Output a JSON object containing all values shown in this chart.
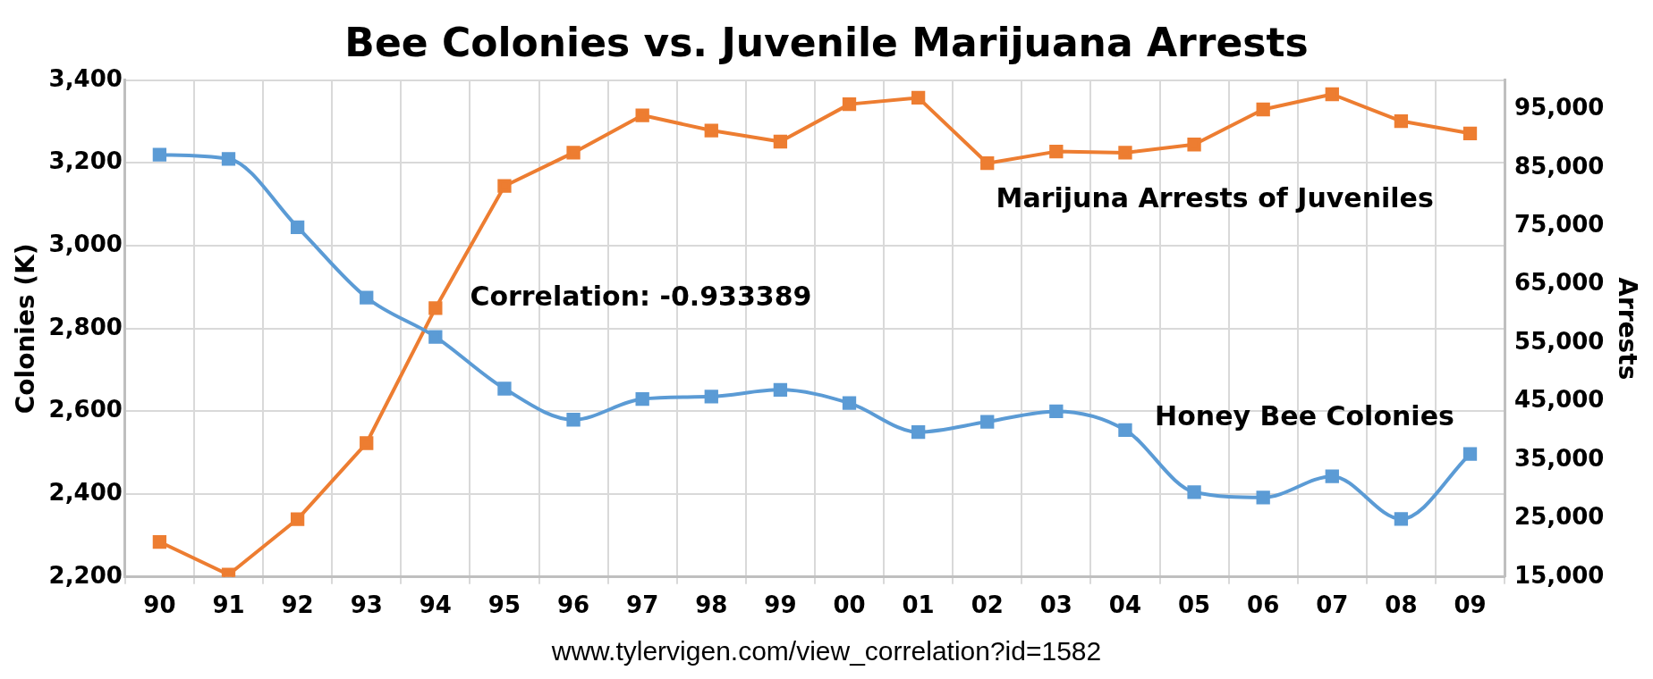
{
  "chart_data": {
    "type": "line",
    "title": "Bee Colonies vs. Juvenile Marijuana Arrests",
    "ylabel": "Colonies (K)",
    "y2label": "Arrests",
    "categories": [
      "90",
      "91",
      "92",
      "93",
      "94",
      "95",
      "96",
      "97",
      "98",
      "99",
      "00",
      "01",
      "02",
      "03",
      "04",
      "05",
      "06",
      "07",
      "08",
      "09"
    ],
    "series": [
      {
        "name": "Honey Bee Colonies",
        "color": "#5b9bd5",
        "values": [
          3220,
          3210,
          3045,
          2875,
          2780,
          2655,
          2580,
          2630,
          2636,
          2652,
          2620,
          2550,
          2575,
          2600,
          2555,
          2405,
          2392,
          2443,
          2340,
          2497
        ]
      },
      {
        "name": "Marijuna Arrests of Juveniles",
        "color": "#ed7d31",
        "axis": "y2",
        "values": [
          21000,
          15400,
          24900,
          37900,
          61000,
          81900,
          87600,
          94000,
          91400,
          89500,
          95900,
          97000,
          85800,
          87800,
          87600,
          89000,
          95000,
          97600,
          93000,
          90900
        ]
      }
    ],
    "ylim": [
      2200,
      3400
    ],
    "yticks": [
      {
        "value": 2200,
        "label": "2,200"
      },
      {
        "value": 2400,
        "label": "2,400"
      },
      {
        "value": 2600,
        "label": "2,600"
      },
      {
        "value": 2800,
        "label": "2,800"
      },
      {
        "value": 3000,
        "label": "3,000"
      },
      {
        "value": 3200,
        "label": "3,200"
      },
      {
        "value": 3400,
        "label": "3,400"
      }
    ],
    "y2lim": [
      15000,
      100000
    ],
    "y2ticks": [
      {
        "value": 15000,
        "label": "15,000"
      },
      {
        "value": 25000,
        "label": "25,000"
      },
      {
        "value": 35000,
        "label": "35,000"
      },
      {
        "value": 45000,
        "label": "45,000"
      },
      {
        "value": 55000,
        "label": "55,000"
      },
      {
        "value": 65000,
        "label": "65,000"
      },
      {
        "value": 75000,
        "label": "75,000"
      },
      {
        "value": 85000,
        "label": "85,000"
      },
      {
        "value": 95000,
        "label": "95,000"
      }
    ],
    "annotations": [
      "Correlation: -0.933389",
      "www.tylervigen.com/view_correlation?id=1582"
    ],
    "grid": true,
    "legend": false,
    "marker": "square",
    "line_style": "solid"
  }
}
